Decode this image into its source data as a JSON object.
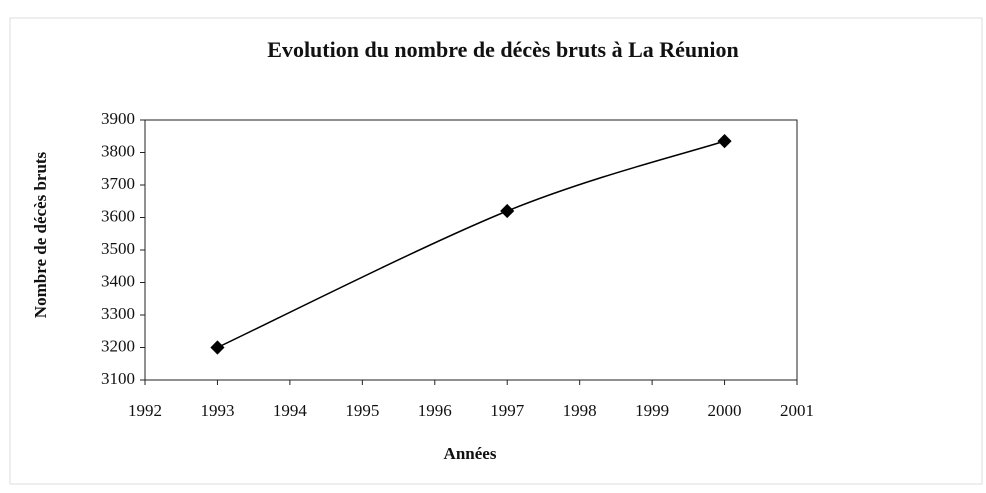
{
  "chart_data": {
    "type": "line",
    "title": "Evolution du nombre de décès bruts à La Réunion",
    "x_label": "Années",
    "y_label": "Nombre de décès bruts",
    "x": [
      1993,
      1997,
      2000
    ],
    "series": [
      {
        "name": "Nombre de décès bruts",
        "color": "#000000",
        "values": [
          3200,
          3620,
          3835
        ]
      }
    ],
    "xlim": [
      1992,
      2001
    ],
    "xticks": [
      1992,
      1993,
      1994,
      1995,
      1996,
      1997,
      1998,
      1999,
      2000,
      2001
    ],
    "ylim": [
      3100,
      3900
    ],
    "yticks": [
      3100,
      3200,
      3300,
      3400,
      3500,
      3600,
      3700,
      3800,
      3900
    ],
    "smooth": true,
    "grid": false
  }
}
